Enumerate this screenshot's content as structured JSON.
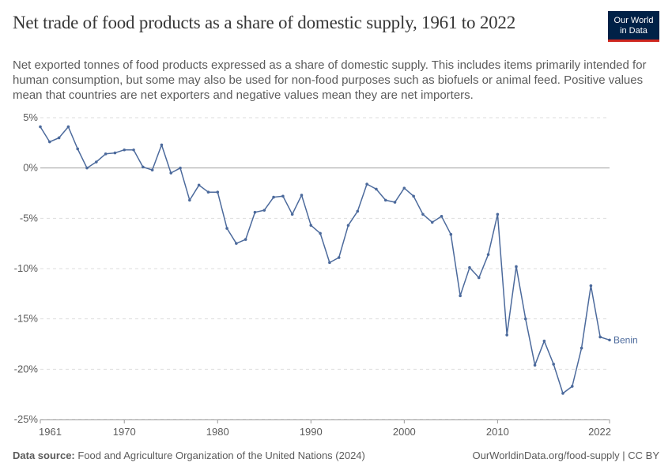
{
  "header": {
    "title": "Net trade of food products as a share of domestic supply, 1961 to 2022",
    "subtitle": "Net exported tonnes of food products expressed as a share of domestic supply. This includes items primarily intended for human consumption, but some may also be used for non-food purposes such as biofuels or animal feed. Positive values mean that countries are net exporters and negative values mean they are net importers.",
    "logo_line1": "Our World",
    "logo_line2": "in Data"
  },
  "footer": {
    "source_label": "Data source:",
    "source_text": "Food and Agriculture Organization of the United Nations (2024)",
    "url_license": "OurWorldinData.org/food-supply | CC BY"
  },
  "colors": {
    "series": "#4c6a9c",
    "grid": "#dddddd",
    "zero_line": "#a1a1a1",
    "axis": "#999999",
    "text": "#5b5b5b"
  },
  "chart_data": {
    "type": "line",
    "xlim": [
      1961,
      2022
    ],
    "ylim": [
      -25,
      5
    ],
    "y_ticks": [
      5,
      0,
      -5,
      -10,
      -15,
      -20,
      -25
    ],
    "y_tick_labels": [
      "5%",
      "0%",
      "-5%",
      "-10%",
      "-15%",
      "-20%",
      "-25%"
    ],
    "x_ticks": [
      1961,
      1970,
      1980,
      1990,
      2000,
      2010,
      2022
    ],
    "x_tick_labels": [
      "1961",
      "1970",
      "1980",
      "1990",
      "2000",
      "2010",
      "2022"
    ],
    "grid": "horizontal dashed",
    "series": [
      {
        "name": "Benin",
        "x": [
          1961,
          1962,
          1963,
          1964,
          1965,
          1966,
          1967,
          1968,
          1969,
          1970,
          1971,
          1972,
          1973,
          1974,
          1975,
          1976,
          1977,
          1978,
          1979,
          1980,
          1981,
          1982,
          1983,
          1984,
          1985,
          1986,
          1987,
          1988,
          1989,
          1990,
          1991,
          1992,
          1993,
          1994,
          1995,
          1996,
          1997,
          1998,
          1999,
          2000,
          2001,
          2002,
          2003,
          2004,
          2005,
          2006,
          2007,
          2008,
          2009,
          2010,
          2011,
          2012,
          2013,
          2014,
          2015,
          2016,
          2017,
          2018,
          2019,
          2020,
          2021,
          2022
        ],
        "values": [
          4.1,
          2.6,
          3.0,
          4.1,
          1.9,
          0.0,
          0.6,
          1.4,
          1.5,
          1.8,
          1.8,
          0.1,
          -0.2,
          2.3,
          -0.5,
          0.0,
          -3.2,
          -1.7,
          -2.4,
          -2.4,
          -6.0,
          -7.5,
          -7.1,
          -4.4,
          -4.2,
          -2.9,
          -2.8,
          -4.6,
          -2.7,
          -5.7,
          -6.5,
          -9.4,
          -8.9,
          -5.7,
          -4.3,
          -1.6,
          -2.1,
          -3.2,
          -3.4,
          -2.0,
          -2.8,
          -4.6,
          -5.4,
          -4.8,
          -6.6,
          -12.7,
          -9.9,
          -10.9,
          -8.6,
          -4.6,
          -16.6,
          -9.8,
          -15.0,
          -19.6,
          -17.2,
          -19.5,
          -22.4,
          -21.7,
          -17.9,
          -11.7,
          -16.8,
          -17.1
        ]
      }
    ]
  }
}
